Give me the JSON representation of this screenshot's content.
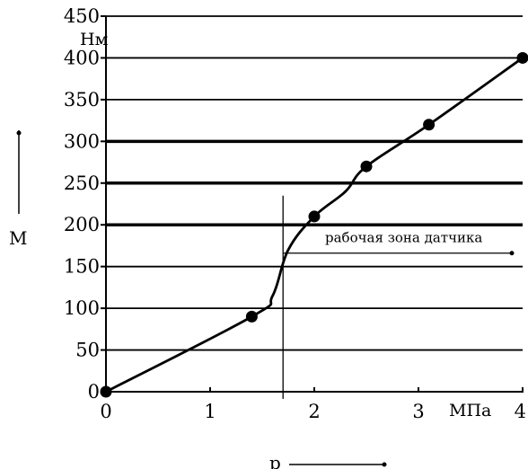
{
  "chart_data": {
    "type": "line",
    "x": [
      0,
      1.4,
      2.0,
      2.5,
      3.1,
      4.0
    ],
    "y": [
      0,
      90,
      210,
      270,
      320,
      400
    ],
    "curve_y_at": [
      {
        "x": 1.6,
        "y": 115
      },
      {
        "x": 1.75,
        "y": 170
      },
      {
        "x": 2.3,
        "y": 240
      }
    ],
    "xlim": [
      0,
      4
    ],
    "ylim": [
      0,
      450
    ],
    "x_ticks": [
      "0",
      "1",
      "2",
      "3",
      "4"
    ],
    "y_ticks": [
      "0",
      "50",
      "100",
      "150",
      "200",
      "250",
      "300",
      "350",
      "400",
      "450"
    ],
    "x_unit": "МПа",
    "y_unit": "Нм",
    "xlabel": "p",
    "ylabel": "М",
    "annotation": {
      "text": "рабочая зона датчика",
      "x_start": 1.7,
      "x_end": 4.0,
      "y": 165
    },
    "thick_gridlines_y": [
      200,
      250,
      300
    ],
    "colors": {
      "line": "#000000",
      "grid": "#000000",
      "background": "#ffffff"
    }
  }
}
